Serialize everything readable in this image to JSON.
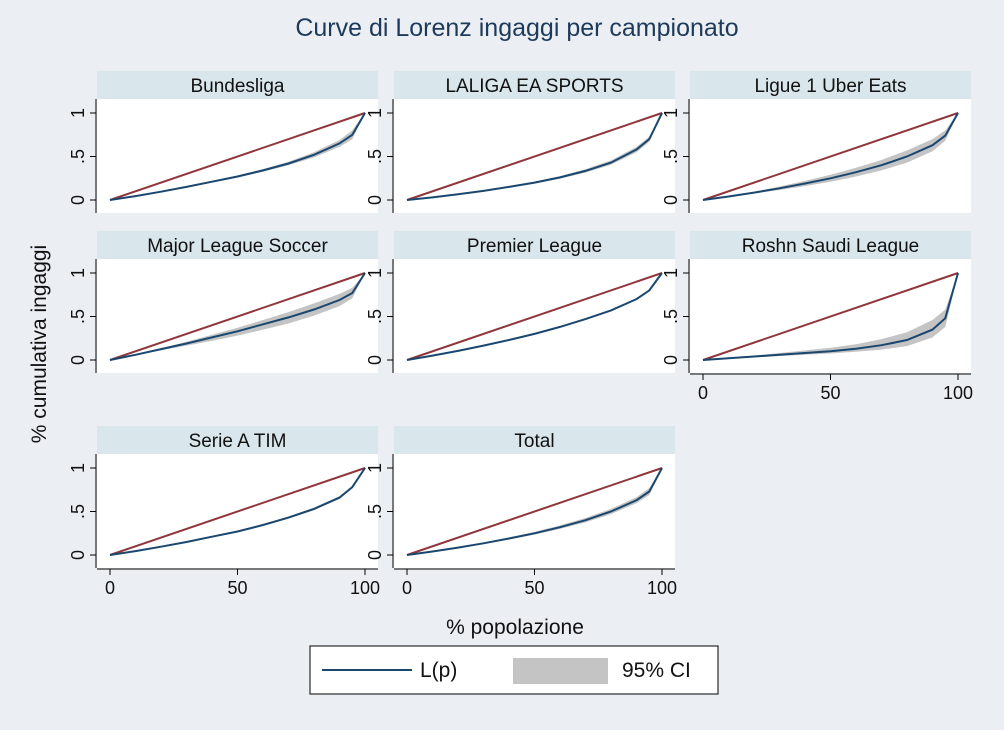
{
  "chart_data": {
    "type": "line",
    "title": "Curve di Lorenz ingaggi per campionato",
    "xlabel": "% popolazione",
    "ylabel": "% cumulativa ingaggi",
    "xlim": [
      0,
      100
    ],
    "ylim": [
      0,
      1
    ],
    "x_ticks": [
      0,
      50,
      100
    ],
    "y_ticks": [
      0,
      0.5,
      1
    ],
    "y_tick_labels": [
      "0",
      ".5",
      "1"
    ],
    "grid": false,
    "legend": {
      "position": "bottom",
      "entries": [
        "L(p)",
        "95% CI"
      ]
    },
    "colors": {
      "lorenz": "#1a476f",
      "equality": "#90353b",
      "ci_band": "#c4c4c4",
      "strip": "#d9e6eb",
      "background": "#ebeff3",
      "panel": "#ffffff"
    },
    "x": [
      0,
      10,
      20,
      30,
      40,
      50,
      60,
      70,
      80,
      90,
      95,
      100
    ],
    "panels": [
      {
        "name": "Bundesliga",
        "y": [
          0,
          0.045,
          0.095,
          0.15,
          0.21,
          0.27,
          0.34,
          0.42,
          0.52,
          0.65,
          0.75,
          1
        ],
        "lo": [
          0,
          0.043,
          0.09,
          0.143,
          0.2,
          0.258,
          0.325,
          0.4,
          0.49,
          0.61,
          0.7,
          1
        ],
        "hi": [
          0,
          0.047,
          0.1,
          0.157,
          0.22,
          0.282,
          0.355,
          0.44,
          0.55,
          0.69,
          0.8,
          1
        ]
      },
      {
        "name": "LALIGA EA SPORTS",
        "y": [
          0,
          0.03,
          0.065,
          0.105,
          0.15,
          0.2,
          0.26,
          0.335,
          0.43,
          0.58,
          0.7,
          1
        ],
        "lo": [
          0,
          0.028,
          0.06,
          0.098,
          0.14,
          0.188,
          0.245,
          0.315,
          0.405,
          0.55,
          0.67,
          1
        ],
        "hi": [
          0,
          0.032,
          0.07,
          0.112,
          0.16,
          0.212,
          0.275,
          0.355,
          0.455,
          0.61,
          0.73,
          1
        ]
      },
      {
        "name": "Ligue 1 Uber Eats",
        "y": [
          0,
          0.04,
          0.085,
          0.135,
          0.19,
          0.25,
          0.32,
          0.4,
          0.5,
          0.63,
          0.74,
          1
        ],
        "lo": [
          0,
          0.036,
          0.075,
          0.115,
          0.16,
          0.21,
          0.27,
          0.34,
          0.43,
          0.56,
          0.68,
          1
        ],
        "hi": [
          0,
          0.045,
          0.095,
          0.155,
          0.22,
          0.29,
          0.37,
          0.46,
          0.57,
          0.7,
          0.8,
          1
        ]
      },
      {
        "name": "Major League Soccer",
        "y": [
          0,
          0.06,
          0.125,
          0.19,
          0.26,
          0.33,
          0.41,
          0.49,
          0.58,
          0.69,
          0.77,
          1
        ],
        "lo": [
          0,
          0.055,
          0.11,
          0.165,
          0.22,
          0.28,
          0.35,
          0.42,
          0.51,
          0.62,
          0.71,
          1
        ],
        "hi": [
          0,
          0.065,
          0.135,
          0.21,
          0.29,
          0.37,
          0.46,
          0.55,
          0.65,
          0.76,
          0.83,
          1
        ]
      },
      {
        "name": "Premier League",
        "y": [
          0,
          0.05,
          0.105,
          0.165,
          0.23,
          0.3,
          0.38,
          0.47,
          0.57,
          0.7,
          0.8,
          1
        ],
        "lo": [
          0,
          0.049,
          0.103,
          0.162,
          0.226,
          0.295,
          0.374,
          0.463,
          0.562,
          0.692,
          0.79,
          1
        ],
        "hi": [
          0,
          0.051,
          0.107,
          0.168,
          0.234,
          0.305,
          0.386,
          0.477,
          0.578,
          0.708,
          0.81,
          1
        ]
      },
      {
        "name": "Roshn Saudi League",
        "y": [
          0,
          0.02,
          0.04,
          0.06,
          0.08,
          0.1,
          0.13,
          0.17,
          0.23,
          0.35,
          0.48,
          1
        ],
        "lo": [
          0,
          0.015,
          0.03,
          0.045,
          0.06,
          0.075,
          0.095,
          0.12,
          0.16,
          0.26,
          0.38,
          1
        ],
        "hi": [
          0,
          0.025,
          0.05,
          0.08,
          0.11,
          0.14,
          0.18,
          0.24,
          0.32,
          0.46,
          0.58,
          1
        ]
      },
      {
        "name": "Serie A TIM",
        "y": [
          0,
          0.045,
          0.095,
          0.15,
          0.21,
          0.27,
          0.345,
          0.43,
          0.53,
          0.66,
          0.78,
          1
        ],
        "lo": [
          0,
          0.043,
          0.091,
          0.144,
          0.203,
          0.262,
          0.335,
          0.418,
          0.515,
          0.645,
          0.765,
          1
        ],
        "hi": [
          0,
          0.047,
          0.099,
          0.156,
          0.217,
          0.278,
          0.355,
          0.442,
          0.545,
          0.675,
          0.795,
          1
        ]
      },
      {
        "name": "Total",
        "y": [
          0,
          0.04,
          0.085,
          0.135,
          0.19,
          0.25,
          0.32,
          0.4,
          0.5,
          0.63,
          0.73,
          1
        ],
        "lo": [
          0,
          0.038,
          0.08,
          0.127,
          0.178,
          0.235,
          0.3,
          0.375,
          0.47,
          0.595,
          0.69,
          1
        ],
        "hi": [
          0,
          0.042,
          0.09,
          0.143,
          0.202,
          0.265,
          0.34,
          0.425,
          0.53,
          0.665,
          0.77,
          1
        ]
      }
    ]
  }
}
